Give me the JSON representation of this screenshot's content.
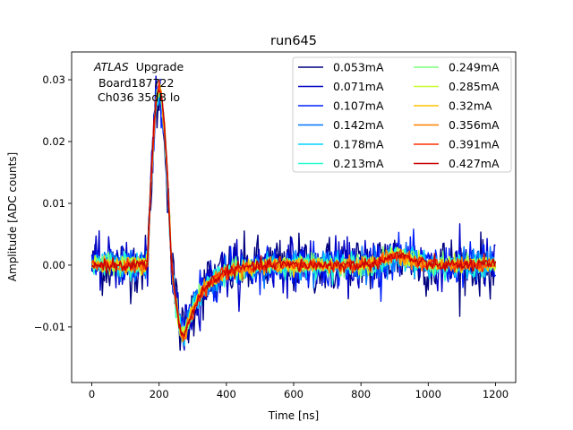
{
  "chart_data": {
    "type": "line",
    "title": "run645",
    "xlabel": "Time [ns]",
    "ylabel": "Amplitude [ADC counts]",
    "xlim": [
      -60,
      1260
    ],
    "ylim": [
      -0.019,
      0.0345
    ],
    "xticks": [
      0,
      200,
      400,
      600,
      800,
      1000,
      1200
    ],
    "xtick_labels": [
      "0",
      "200",
      "400",
      "600",
      "800",
      "1000",
      "1200"
    ],
    "yticks": [
      -0.01,
      0.0,
      0.01,
      0.02,
      0.03
    ],
    "ytick_labels": [
      "−0.01",
      "0.00",
      "0.01",
      "0.02",
      "0.03"
    ],
    "grid": false,
    "legend_position": "top-right",
    "legend_columns": 2,
    "annotation": {
      "atlas": "ATLAS",
      "upgrade": "Upgrade",
      "board": "Board187722",
      "channel": "Ch036 35dB lo"
    },
    "sample_step_ns": 3.125,
    "x_range": [
      0,
      1200
    ],
    "pulse_shape": {
      "baseline": 0.0,
      "peak_time": 200,
      "peak_amplitude": 0.028,
      "undershoot_time": 275,
      "undershoot_amplitude": -0.0115,
      "recovery_end": 520,
      "bump_time": 910,
      "bump_amplitude": 0.0015
    },
    "series": [
      {
        "name": "0.053mA",
        "color": "#00007f",
        "noise": 0.0028
      },
      {
        "name": "0.071mA",
        "color": "#0000c8",
        "noise": 0.0024
      },
      {
        "name": "0.107mA",
        "color": "#0020ff",
        "noise": 0.0019
      },
      {
        "name": "0.142mA",
        "color": "#0074ff",
        "noise": 0.0015
      },
      {
        "name": "0.178mA",
        "color": "#00d4ff",
        "noise": 0.0012
      },
      {
        "name": "0.213mA",
        "color": "#26ffd0",
        "noise": 0.001
      },
      {
        "name": "0.249mA",
        "color": "#7dff7a",
        "noise": 0.0009
      },
      {
        "name": "0.285mA",
        "color": "#c8ff2e",
        "noise": 0.0008
      },
      {
        "name": "0.32mA",
        "color": "#ffc400",
        "noise": 0.0007
      },
      {
        "name": "0.356mA",
        "color": "#ff8000",
        "noise": 0.0007
      },
      {
        "name": "0.391mA",
        "color": "#ff3000",
        "noise": 0.0006
      },
      {
        "name": "0.427mA",
        "color": "#c80000",
        "noise": 0.0006
      }
    ]
  }
}
